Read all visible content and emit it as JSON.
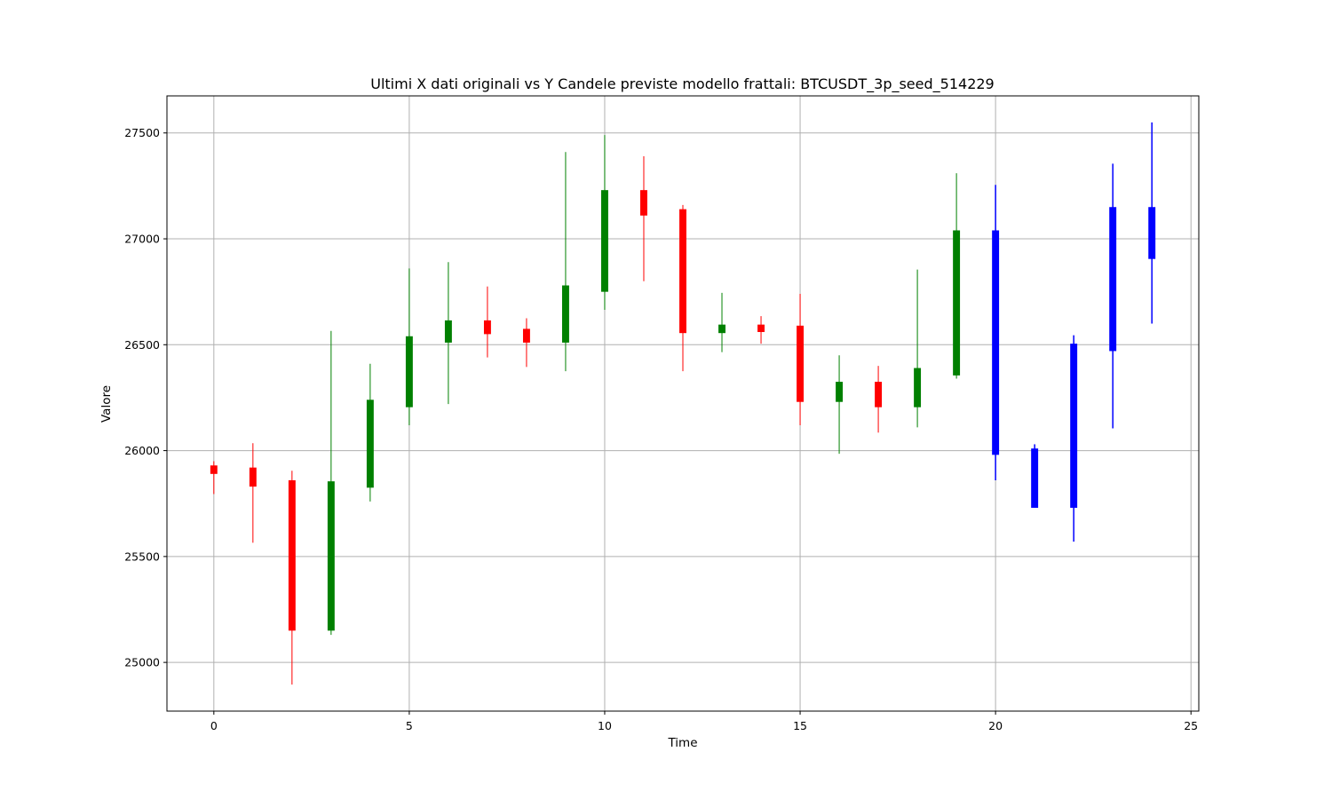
{
  "chart_data": {
    "type": "candlestick",
    "title": "Ultimi X dati originali vs Y Candele previste modello frattali: BTCUSDT_3p_seed_514229",
    "xlabel": "Time",
    "ylabel": "Valore",
    "xlim": [
      -1.2,
      25.2
    ],
    "ylim": [
      24770,
      27675
    ],
    "xticks": [
      0,
      5,
      10,
      15,
      20,
      25
    ],
    "yticks": [
      25000,
      25500,
      26000,
      26500,
      27000,
      27500
    ],
    "grid": true,
    "colors": {
      "up": "#008000",
      "down": "#ff0000",
      "forecast": "#0000ff"
    },
    "candles": [
      {
        "t": 0,
        "open": 25930,
        "high": 25950,
        "low": 25795,
        "close": 25890,
        "kind": "down"
      },
      {
        "t": 1,
        "open": 25920,
        "high": 26035,
        "low": 25565,
        "close": 25830,
        "kind": "down"
      },
      {
        "t": 2,
        "open": 25860,
        "high": 25905,
        "low": 24895,
        "close": 25150,
        "kind": "down"
      },
      {
        "t": 3,
        "open": 25150,
        "high": 26565,
        "low": 25130,
        "close": 25855,
        "kind": "up"
      },
      {
        "t": 4,
        "open": 25825,
        "high": 26410,
        "low": 25760,
        "close": 26240,
        "kind": "up"
      },
      {
        "t": 5,
        "open": 26205,
        "high": 26860,
        "low": 26120,
        "close": 26540,
        "kind": "up"
      },
      {
        "t": 6,
        "open": 26510,
        "high": 26890,
        "low": 26220,
        "close": 26615,
        "kind": "up"
      },
      {
        "t": 7,
        "open": 26615,
        "high": 26775,
        "low": 26440,
        "close": 26550,
        "kind": "down"
      },
      {
        "t": 8,
        "open": 26575,
        "high": 26625,
        "low": 26395,
        "close": 26510,
        "kind": "down"
      },
      {
        "t": 9,
        "open": 26510,
        "high": 27410,
        "low": 26375,
        "close": 26780,
        "kind": "up"
      },
      {
        "t": 10,
        "open": 26750,
        "high": 27490,
        "low": 26665,
        "close": 27230,
        "kind": "up"
      },
      {
        "t": 11,
        "open": 27230,
        "high": 27390,
        "low": 26800,
        "close": 27110,
        "kind": "down"
      },
      {
        "t": 12,
        "open": 27140,
        "high": 27160,
        "low": 26375,
        "close": 26555,
        "kind": "down"
      },
      {
        "t": 13,
        "open": 26555,
        "high": 26745,
        "low": 26465,
        "close": 26595,
        "kind": "up"
      },
      {
        "t": 14,
        "open": 26595,
        "high": 26635,
        "low": 26505,
        "close": 26560,
        "kind": "down"
      },
      {
        "t": 15,
        "open": 26590,
        "high": 26740,
        "low": 26120,
        "close": 26230,
        "kind": "down"
      },
      {
        "t": 16,
        "open": 26230,
        "high": 26450,
        "low": 25985,
        "close": 26325,
        "kind": "up"
      },
      {
        "t": 17,
        "open": 26325,
        "high": 26400,
        "low": 26085,
        "close": 26205,
        "kind": "down"
      },
      {
        "t": 18,
        "open": 26205,
        "high": 26855,
        "low": 26110,
        "close": 26390,
        "kind": "up"
      },
      {
        "t": 19,
        "open": 26355,
        "high": 27310,
        "low": 26340,
        "close": 27040,
        "kind": "up"
      },
      {
        "t": 20,
        "open": 25980,
        "high": 27255,
        "low": 25860,
        "close": 27040,
        "kind": "forecast"
      },
      {
        "t": 21,
        "open": 25730,
        "high": 26030,
        "low": 25730,
        "close": 26010,
        "kind": "forecast"
      },
      {
        "t": 22,
        "open": 25730,
        "high": 26545,
        "low": 25570,
        "close": 26505,
        "kind": "forecast"
      },
      {
        "t": 23,
        "open": 26470,
        "high": 27355,
        "low": 26105,
        "close": 27150,
        "kind": "forecast"
      },
      {
        "t": 24,
        "open": 26905,
        "high": 27550,
        "low": 26600,
        "close": 27150,
        "kind": "forecast"
      }
    ]
  }
}
